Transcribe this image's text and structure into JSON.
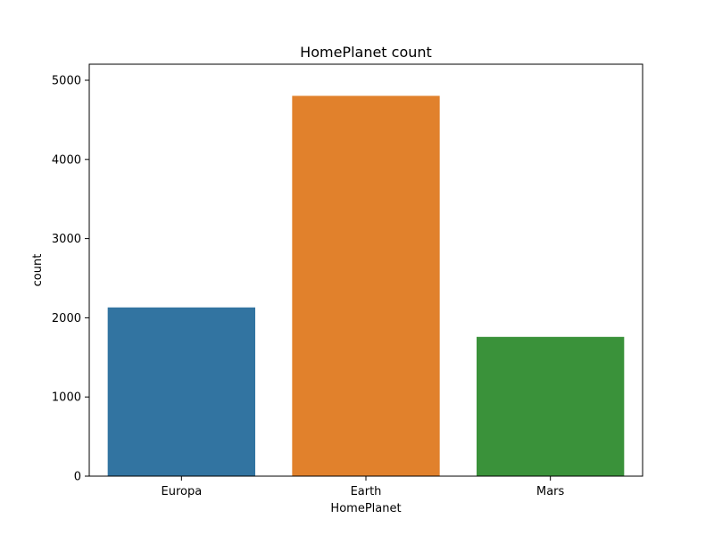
{
  "chart_data": {
    "type": "bar",
    "title": "HomePlanet count",
    "xlabel": "HomePlanet",
    "ylabel": "count",
    "categories": [
      "Europa",
      "Earth",
      "Mars"
    ],
    "values": [
      2131,
      4803,
      1759
    ],
    "colors": [
      "#3274a1",
      "#e1812c",
      "#3a923a"
    ],
    "ylim": [
      0,
      5000
    ],
    "yticks": [
      0,
      1000,
      2000,
      3000,
      4000,
      5000
    ],
    "grid": false,
    "legend": "none"
  }
}
